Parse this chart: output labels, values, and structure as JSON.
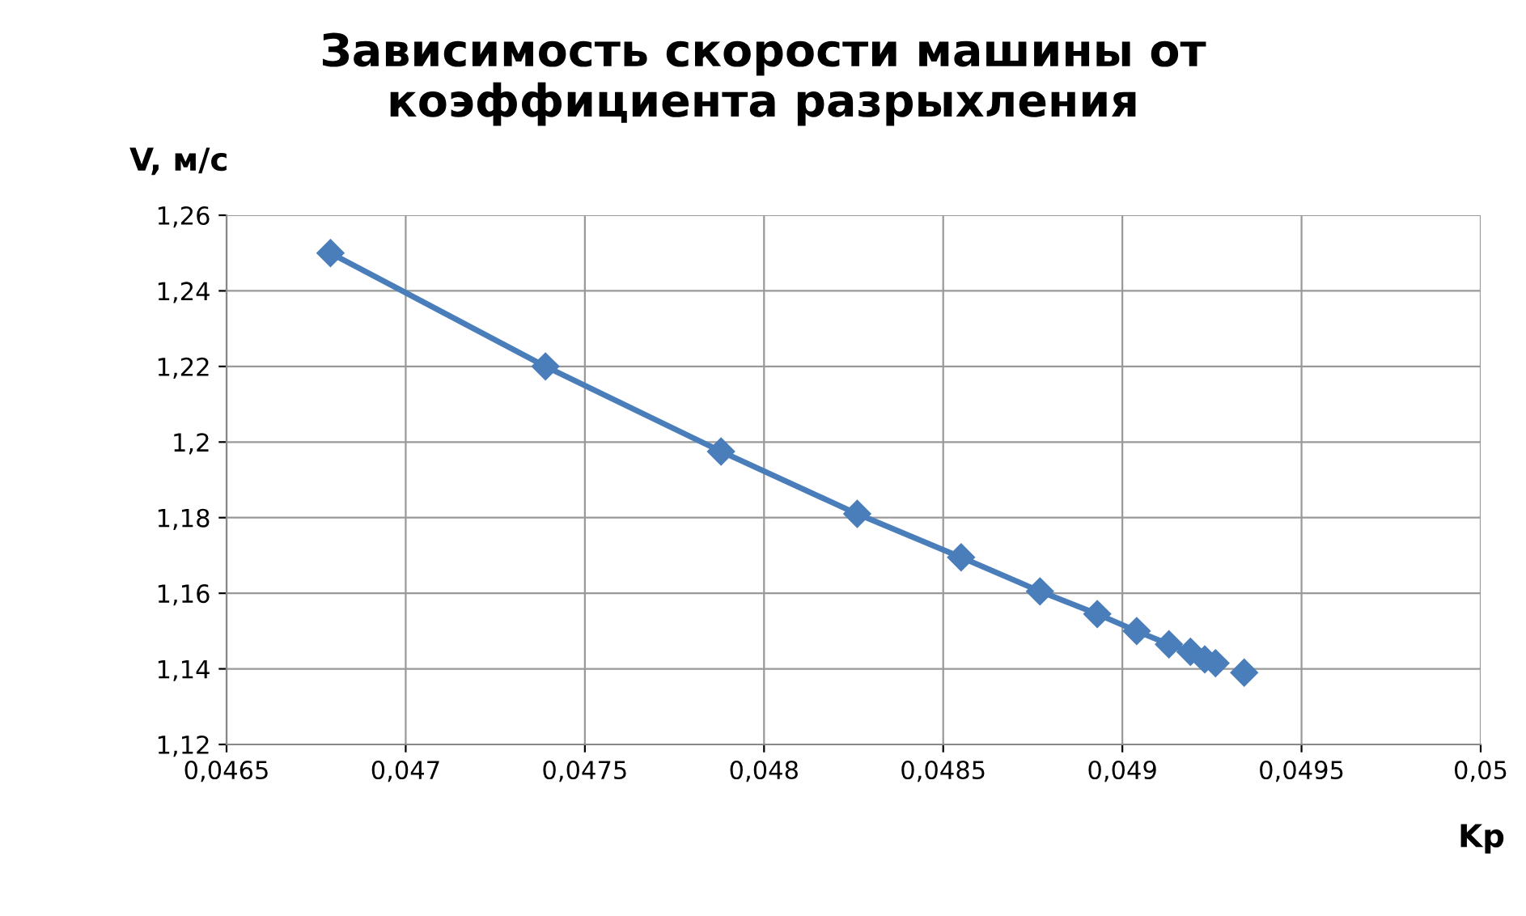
{
  "chart_data": {
    "type": "line",
    "title": "Зависимость скорости машины от\nкоэффициента разрыхления",
    "xlabel": "Kp",
    "ylabel": "V, м/с",
    "x": [
      0.04679,
      0.04739,
      0.04788,
      0.04826,
      0.04855,
      0.04877,
      0.04893,
      0.04904,
      0.04913,
      0.04919,
      0.04923,
      0.04926,
      0.04929,
      0.04931,
      0.04933,
      0.04934
    ],
    "series": [
      {
        "color": "#4a7ebb",
        "values": [
          1.25,
          1.22,
          1.1975,
          1.181,
          1.1695,
          1.1605,
          1.1545,
          1.15,
          1.1465,
          1.1445,
          1.1425,
          1.1415,
          null,
          null,
          null,
          1.139
        ]
      }
    ],
    "xlim": [
      0.0465,
      0.05
    ],
    "xticks": [
      {
        "value": 0.0465,
        "label": "0,0465"
      },
      {
        "value": 0.047,
        "label": "0,047"
      },
      {
        "value": 0.0475,
        "label": "0,0475"
      },
      {
        "value": 0.048,
        "label": "0,048"
      },
      {
        "value": 0.0485,
        "label": "0,0485"
      },
      {
        "value": 0.049,
        "label": "0,049"
      },
      {
        "value": 0.0495,
        "label": "0,0495"
      },
      {
        "value": 0.05,
        "label": "0,05"
      }
    ],
    "ylim": [
      1.12,
      1.26
    ],
    "yticks": [
      {
        "value": 1.12,
        "label": "1,12"
      },
      {
        "value": 1.14,
        "label": "1,14"
      },
      {
        "value": 1.16,
        "label": "1,16"
      },
      {
        "value": 1.18,
        "label": "1,18"
      },
      {
        "value": 1.2,
        "label": "1,2"
      },
      {
        "value": 1.22,
        "label": "1,22"
      },
      {
        "value": 1.24,
        "label": "1,24"
      },
      {
        "value": 1.26,
        "label": "1,26"
      }
    ],
    "grid": true,
    "marker": "diamond",
    "line_style": "solid",
    "legend": false
  }
}
